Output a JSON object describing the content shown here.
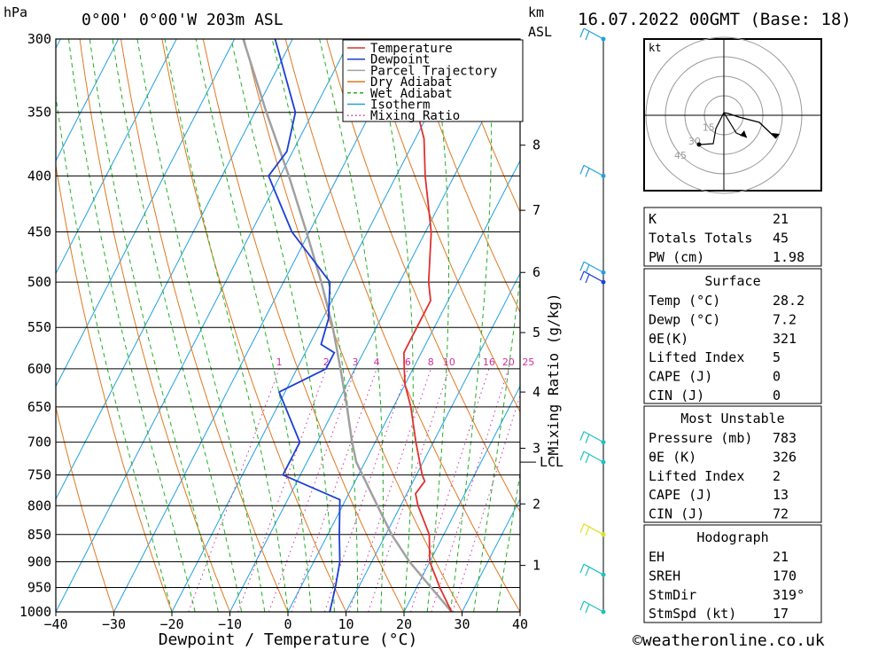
{
  "header": {
    "units_pressure": "hPa",
    "location": "0°00' 0°00'W 203m ASL",
    "units_km": "km",
    "units_asl": "ASL",
    "date": "16.07.2022 00GMT (Base: 18)"
  },
  "chart_data": {
    "type": "line",
    "title": "0°00' 0°00'W 203m ASL",
    "xlabel": "Dewpoint / Temperature (°C)",
    "ylabel": "hPa",
    "mixing_label": "Mixing Ratio (g/kg)",
    "xlim": [
      -40,
      40
    ],
    "ylim": [
      1000,
      300
    ],
    "x_ticks": [
      -40,
      -30,
      -20,
      -10,
      0,
      10,
      20,
      30,
      40
    ],
    "x_tick_labels": [
      "−40",
      "−30",
      "−20",
      "−10",
      "0",
      "10",
      "20",
      "30",
      "40"
    ],
    "pressure_levels": [
      300,
      350,
      400,
      450,
      500,
      550,
      600,
      650,
      700,
      750,
      800,
      850,
      900,
      950,
      1000
    ],
    "km_ticks": [
      {
        "label": "1",
        "p": 907
      },
      {
        "label": "2",
        "p": 797
      },
      {
        "label": "3",
        "p": 709
      },
      {
        "label": "4",
        "p": 630
      },
      {
        "label": "5",
        "p": 556
      },
      {
        "label": "6",
        "p": 490
      },
      {
        "label": "7",
        "p": 430
      },
      {
        "label": "8",
        "p": 375
      }
    ],
    "lcl": {
      "label": "LCL",
      "p": 730
    },
    "mixing_ratio_labels": [
      {
        "label": "1",
        "w": 1
      },
      {
        "label": "2",
        "w": 2
      },
      {
        "label": "3",
        "w": 3
      },
      {
        "label": "4",
        "w": 4
      },
      {
        "label": "6",
        "w": 6
      },
      {
        "label": "8",
        "w": 8
      },
      {
        "label": "10",
        "w": 10
      },
      {
        "label": "16",
        "w": 16
      },
      {
        "label": "20",
        "w": 20
      },
      {
        "label": "25",
        "w": 25
      }
    ],
    "legend": [
      {
        "label": "Temperature",
        "color": "#e03030"
      },
      {
        "label": "Dewpoint",
        "color": "#1a3fd6"
      },
      {
        "label": "Parcel Trajectory",
        "color": "#a0a0a0"
      },
      {
        "label": "Dry Adiabat",
        "color": "#e07820"
      },
      {
        "label": "Wet Adiabat",
        "color": "#20b020"
      },
      {
        "label": "Isotherm",
        "color": "#20a0e0"
      },
      {
        "label": "Mixing Ratio",
        "color": "#d030a0"
      }
    ],
    "series": [
      {
        "name": "Temperature",
        "color": "#e03030",
        "points": [
          [
            1000,
            28.2
          ],
          [
            950,
            24.0
          ],
          [
            900,
            20.0
          ],
          [
            850,
            17.5
          ],
          [
            800,
            13.0
          ],
          [
            780,
            11.5
          ],
          [
            760,
            12.0
          ],
          [
            750,
            11.0
          ],
          [
            700,
            7.0
          ],
          [
            650,
            3.0
          ],
          [
            620,
            0.0
          ],
          [
            600,
            -1.5
          ],
          [
            580,
            -3.0
          ],
          [
            550,
            -3.0
          ],
          [
            520,
            -3.0
          ],
          [
            500,
            -5.0
          ],
          [
            450,
            -9.0
          ],
          [
            400,
            -15.0
          ],
          [
            370,
            -18.5
          ],
          [
            350,
            -22.0
          ],
          [
            300,
            -30.0
          ]
        ]
      },
      {
        "name": "Dewpoint",
        "color": "#1a3fd6",
        "points": [
          [
            1000,
            7.2
          ],
          [
            950,
            6.0
          ],
          [
            900,
            4.5
          ],
          [
            850,
            2.0
          ],
          [
            790,
            -1.0
          ],
          [
            750,
            -13.0
          ],
          [
            700,
            -13.0
          ],
          [
            630,
            -21.0
          ],
          [
            600,
            -15.0
          ],
          [
            580,
            -15.0
          ],
          [
            570,
            -18.0
          ],
          [
            540,
            -19.0
          ],
          [
            500,
            -22.0
          ],
          [
            450,
            -33.0
          ],
          [
            400,
            -42.0
          ],
          [
            380,
            -41.0
          ],
          [
            350,
            -43.0
          ],
          [
            300,
            -53.0
          ]
        ]
      },
      {
        "name": "Parcel Trajectory",
        "color": "#a0a0a0",
        "points": [
          [
            1000,
            28.2
          ],
          [
            950,
            22.5
          ],
          [
            900,
            16.5
          ],
          [
            850,
            11.0
          ],
          [
            800,
            6.0
          ],
          [
            730,
            -1.5
          ],
          [
            700,
            -4.0
          ],
          [
            650,
            -8.0
          ],
          [
            600,
            -12.5
          ],
          [
            550,
            -17.5
          ],
          [
            500,
            -23.5
          ],
          [
            450,
            -30.5
          ],
          [
            400,
            -38.5
          ],
          [
            350,
            -48.0
          ],
          [
            300,
            -58.5
          ]
        ]
      }
    ],
    "wind_profile": [
      {
        "p": 1000,
        "color": "#20c0c0"
      },
      {
        "p": 925,
        "color": "#20c0c0"
      },
      {
        "p": 850,
        "color": "#e0e020"
      },
      {
        "p": 730,
        "color": "#20c0c0"
      },
      {
        "p": 700,
        "color": "#20c0c0"
      },
      {
        "p": 500,
        "color": "#2040e0"
      },
      {
        "p": 490,
        "color": "#20a0e0"
      },
      {
        "p": 400,
        "color": "#20a0e0"
      },
      {
        "p": 300,
        "color": "#20a0e0"
      }
    ]
  },
  "hodograph": {
    "unit": "kt",
    "ring_labels": [
      "15",
      "30",
      "45"
    ]
  },
  "indices": [
    {
      "label": "K",
      "value": "21"
    },
    {
      "label": "Totals Totals",
      "value": "45"
    },
    {
      "label": "PW (cm)",
      "value": "1.98"
    }
  ],
  "surface": {
    "title": "Surface",
    "rows": [
      {
        "label": "Temp (°C)",
        "value": "28.2"
      },
      {
        "label": "Dewp (°C)",
        "value": "7.2"
      },
      {
        "label": "θE(K)",
        "value": "321"
      },
      {
        "label": "Lifted Index",
        "value": "5"
      },
      {
        "label": "CAPE (J)",
        "value": "0"
      },
      {
        "label": "CIN (J)",
        "value": "0"
      }
    ]
  },
  "most_unstable": {
    "title": "Most Unstable",
    "rows": [
      {
        "label": "Pressure (mb)",
        "value": "783"
      },
      {
        "label": "θE (K)",
        "value": "326"
      },
      {
        "label": "Lifted Index",
        "value": "2"
      },
      {
        "label": "CAPE (J)",
        "value": "13"
      },
      {
        "label": "CIN (J)",
        "value": "72"
      }
    ]
  },
  "hodograph_table": {
    "title": "Hodograph",
    "rows": [
      {
        "label": "EH",
        "value": "21"
      },
      {
        "label": "SREH",
        "value": "170"
      },
      {
        "label": "StmDir",
        "value": "319°"
      },
      {
        "label": "StmSpd (kt)",
        "value": "17"
      }
    ]
  },
  "footer": {
    "copyright": "©weatheronline.co.uk"
  }
}
